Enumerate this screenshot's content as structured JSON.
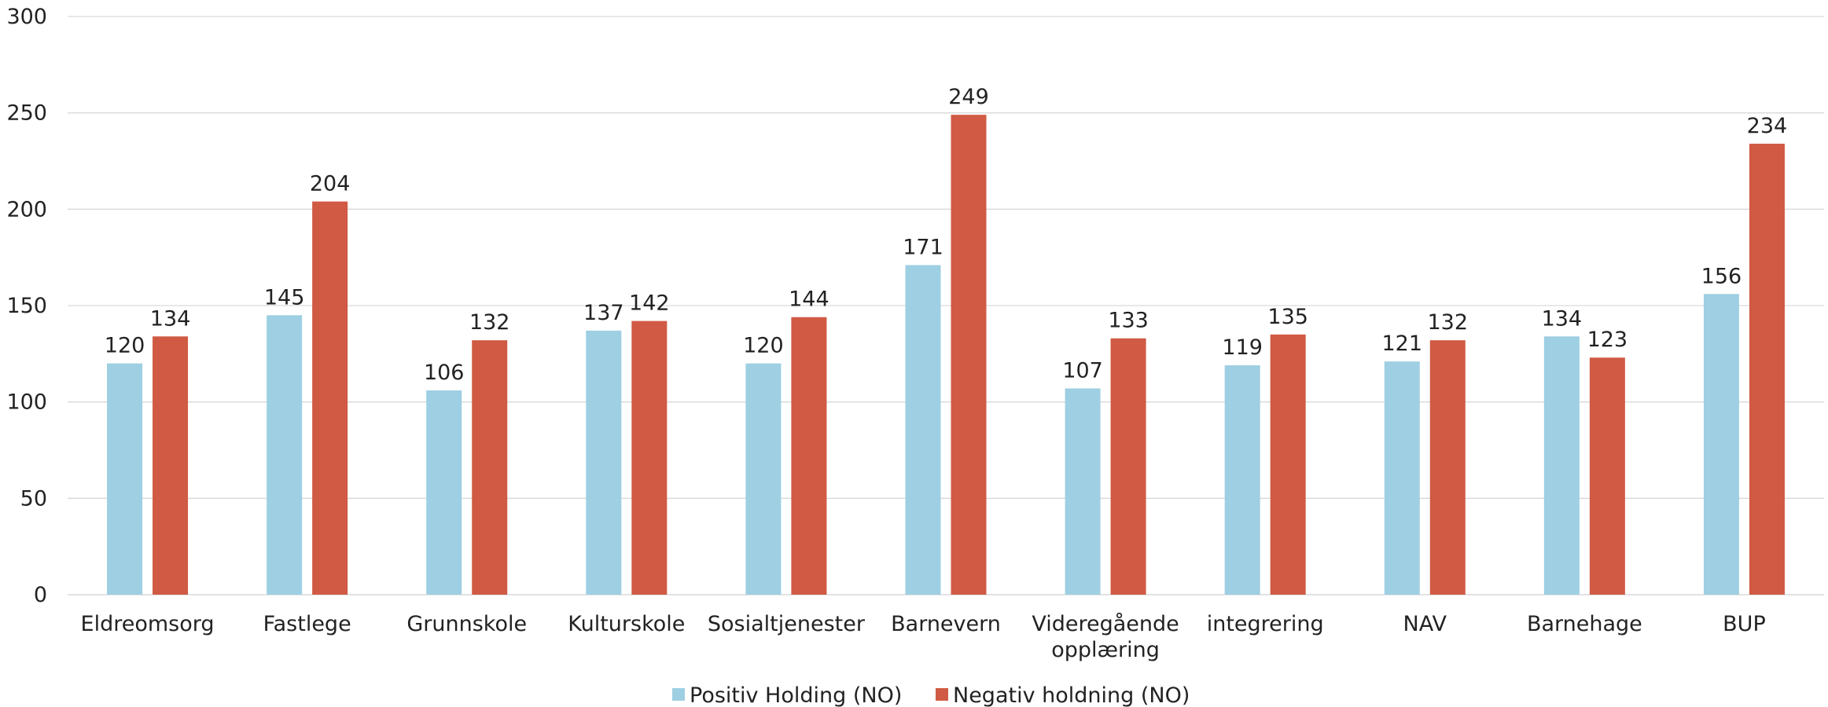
{
  "chart_data": {
    "type": "bar",
    "categories": [
      [
        "Eldreomsorg"
      ],
      [
        "Fastlege"
      ],
      [
        "Grunnskole"
      ],
      [
        "Kulturskole"
      ],
      [
        "Sosialtjenester"
      ],
      [
        "Barnevern"
      ],
      [
        "Videregående",
        "opplæring"
      ],
      [
        "integrering"
      ],
      [
        "NAV"
      ],
      [
        "Barnehage"
      ],
      [
        "BUP"
      ]
    ],
    "series": [
      {
        "name": "Positiv Holding (NO)",
        "color": "#9ECFE2",
        "values": [
          120,
          145,
          106,
          137,
          120,
          171,
          107,
          119,
          121,
          134,
          156
        ]
      },
      {
        "name": "Negativ holdning (NO)",
        "color": "#D05A43",
        "values": [
          134,
          204,
          132,
          142,
          144,
          249,
          133,
          135,
          132,
          123,
          234
        ]
      }
    ],
    "yticks": [
      0,
      50,
      100,
      150,
      200,
      250,
      300
    ],
    "ylim": [
      0,
      300
    ],
    "grid": true,
    "legend_position": "bottom-center",
    "data_labels": true
  }
}
